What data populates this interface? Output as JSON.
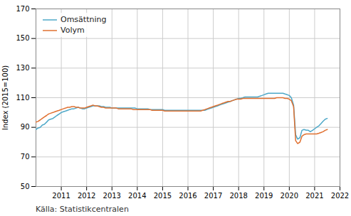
{
  "chart_data": {
    "type": "line",
    "ylabel": "Index (2015=100)",
    "source": "Källa: Statistikcentralen",
    "xlim": [
      2010.0,
      2022.0
    ],
    "xticks": [
      2011,
      2012,
      2013,
      2014,
      2015,
      2016,
      2017,
      2018,
      2019,
      2020,
      2021,
      2022
    ],
    "ylim": [
      50,
      170
    ],
    "yticks": [
      50,
      70,
      90,
      110,
      130,
      150,
      170
    ],
    "grid": true,
    "legend": "upper left",
    "x": [
      2010.0,
      2010.08,
      2010.17,
      2010.25,
      2010.33,
      2010.42,
      2010.5,
      2010.58,
      2010.67,
      2010.75,
      2010.83,
      2010.92,
      2011.0,
      2011.08,
      2011.17,
      2011.25,
      2011.33,
      2011.42,
      2011.5,
      2011.58,
      2011.67,
      2011.75,
      2011.83,
      2011.92,
      2012.0,
      2012.08,
      2012.17,
      2012.25,
      2012.33,
      2012.42,
      2012.5,
      2012.58,
      2012.67,
      2012.75,
      2012.83,
      2012.92,
      2013.0,
      2013.08,
      2013.17,
      2013.25,
      2013.33,
      2013.42,
      2013.5,
      2013.58,
      2013.67,
      2013.75,
      2013.83,
      2013.92,
      2014.0,
      2014.08,
      2014.17,
      2014.25,
      2014.33,
      2014.42,
      2014.5,
      2014.58,
      2014.67,
      2014.75,
      2014.83,
      2014.92,
      2015.0,
      2015.08,
      2015.17,
      2015.25,
      2015.33,
      2015.42,
      2015.5,
      2015.58,
      2015.67,
      2015.75,
      2015.83,
      2015.92,
      2016.0,
      2016.08,
      2016.17,
      2016.25,
      2016.33,
      2016.42,
      2016.5,
      2016.58,
      2016.67,
      2016.75,
      2016.83,
      2016.92,
      2017.0,
      2017.08,
      2017.17,
      2017.25,
      2017.33,
      2017.42,
      2017.5,
      2017.58,
      2017.67,
      2017.75,
      2017.83,
      2017.92,
      2018.0,
      2018.08,
      2018.17,
      2018.25,
      2018.33,
      2018.42,
      2018.5,
      2018.58,
      2018.67,
      2018.75,
      2018.83,
      2018.92,
      2019.0,
      2019.08,
      2019.17,
      2019.25,
      2019.33,
      2019.42,
      2019.5,
      2019.58,
      2019.67,
      2019.75,
      2019.83,
      2019.92,
      2020.0,
      2020.08,
      2020.17,
      2020.25,
      2020.33,
      2020.42,
      2020.5,
      2020.58,
      2020.67,
      2020.75,
      2020.83,
      2020.92,
      2021.0,
      2021.08,
      2021.17,
      2021.25,
      2021.33,
      2021.42,
      2021.5
    ],
    "series": [
      {
        "name": "Omsättning",
        "color": "#4ea8c8",
        "values": [
          88.5,
          89.5,
          90.0,
          91.5,
          92.0,
          93.5,
          95.0,
          95.5,
          96.0,
          97.0,
          98.0,
          99.0,
          100.0,
          100.5,
          101.0,
          101.5,
          102.0,
          102.5,
          102.5,
          103.0,
          103.5,
          103.0,
          102.5,
          102.5,
          103.0,
          103.5,
          104.0,
          104.5,
          104.5,
          104.5,
          104.5,
          104.0,
          104.0,
          103.5,
          103.5,
          103.5,
          103.0,
          103.0,
          103.0,
          103.0,
          103.0,
          103.0,
          103.0,
          103.0,
          103.0,
          103.0,
          103.0,
          103.0,
          102.5,
          102.5,
          102.5,
          102.5,
          102.5,
          102.5,
          102.0,
          102.0,
          102.0,
          102.0,
          102.0,
          102.0,
          102.0,
          101.5,
          101.5,
          101.5,
          101.5,
          101.5,
          101.5,
          101.5,
          101.5,
          101.5,
          101.5,
          101.5,
          101.5,
          101.5,
          101.5,
          101.5,
          101.5,
          101.5,
          101.5,
          101.5,
          101.5,
          102.0,
          102.5,
          103.0,
          103.5,
          104.0,
          104.5,
          105.0,
          105.5,
          106.0,
          106.5,
          107.0,
          107.5,
          108.0,
          108.5,
          109.0,
          109.5,
          109.5,
          110.0,
          110.5,
          110.5,
          110.5,
          110.5,
          110.5,
          110.5,
          110.5,
          111.0,
          111.5,
          112.0,
          112.5,
          113.0,
          113.0,
          113.0,
          113.0,
          113.0,
          113.0,
          113.0,
          113.0,
          112.5,
          112.0,
          111.5,
          110.0,
          105.0,
          85.0,
          82.0,
          83.0,
          88.0,
          88.5,
          88.0,
          88.0,
          87.0,
          88.0,
          89.0,
          90.0,
          91.0,
          92.5,
          94.0,
          95.5,
          96.0
        ]
      },
      {
        "name": "Volym",
        "color": "#e07030",
        "values": [
          93.5,
          94.0,
          95.0,
          96.0,
          97.0,
          98.0,
          99.0,
          99.5,
          100.0,
          100.5,
          101.0,
          101.5,
          102.0,
          102.5,
          103.0,
          103.5,
          103.5,
          104.0,
          104.0,
          103.5,
          103.5,
          103.0,
          103.0,
          103.0,
          103.5,
          104.0,
          104.5,
          105.0,
          104.5,
          104.5,
          104.0,
          103.5,
          103.5,
          103.0,
          103.0,
          103.0,
          103.0,
          103.0,
          103.0,
          102.5,
          102.5,
          102.5,
          102.5,
          102.5,
          102.5,
          102.5,
          102.0,
          102.0,
          102.0,
          102.0,
          102.0,
          102.0,
          102.0,
          102.0,
          102.0,
          101.5,
          101.5,
          101.5,
          101.5,
          101.5,
          101.5,
          101.0,
          101.0,
          101.0,
          101.0,
          101.0,
          101.0,
          101.0,
          101.0,
          101.0,
          101.0,
          101.0,
          101.0,
          101.0,
          101.0,
          101.0,
          101.0,
          101.0,
          101.0,
          101.5,
          102.0,
          102.5,
          103.0,
          103.5,
          104.0,
          104.5,
          105.0,
          105.5,
          106.0,
          106.5,
          107.0,
          107.5,
          107.5,
          108.0,
          108.5,
          109.0,
          109.0,
          109.0,
          109.5,
          109.5,
          109.5,
          109.5,
          109.5,
          109.5,
          109.5,
          109.5,
          109.5,
          109.5,
          109.5,
          109.5,
          109.5,
          109.5,
          109.5,
          109.5,
          110.0,
          110.0,
          110.0,
          110.0,
          109.5,
          109.5,
          109.0,
          108.0,
          104.0,
          81.0,
          79.0,
          80.0,
          84.0,
          85.0,
          85.5,
          85.5,
          85.5,
          85.5,
          85.5,
          85.5,
          86.0,
          86.5,
          87.0,
          88.0,
          88.5
        ]
      }
    ]
  }
}
